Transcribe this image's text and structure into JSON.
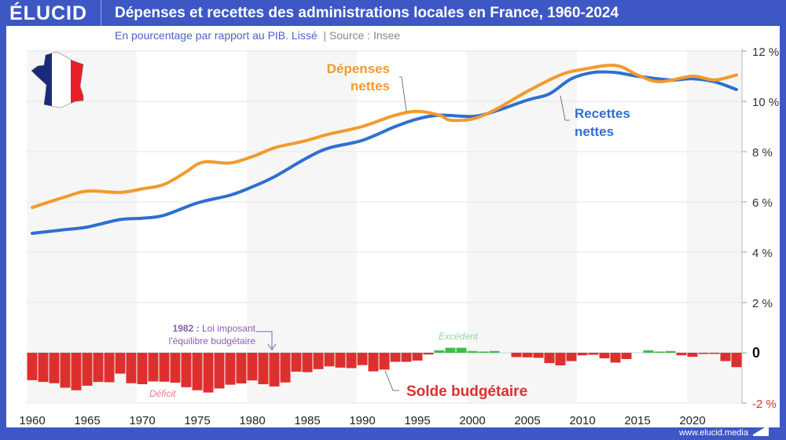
{
  "header": {
    "logo": "ÉLUCID",
    "title": "Dépenses et recettes des administrations locales en France, 1960-2024",
    "subtitle": "En pourcentage par rapport au PIB. Lissé",
    "source": "Source : Insee"
  },
  "footer": {
    "url": "www.elucid.media"
  },
  "colors": {
    "brand": "#3d57c4",
    "depenses": "#f39a2e",
    "recettes": "#2f6fd1",
    "deficit": "#de2f2f",
    "excedent": "#3bbf4a",
    "annotation": "#8a5fb0"
  },
  "annotations": {
    "depenses_line1": "Dépenses",
    "depenses_line2": "nettes",
    "recettes_line1": "Recettes",
    "recettes_line2": "nettes",
    "solde": "Solde budgétaire",
    "excedent": "Excédent",
    "deficit": "Déficit",
    "law_year": "1982 :",
    "law_text1": "Loi imposant",
    "law_text2": "l'équilibre budgétaire"
  },
  "chart_data": {
    "type": "line+bar",
    "xlim": [
      1960,
      2024
    ],
    "ylim": [
      -2,
      12
    ],
    "x_ticks": [
      "1960",
      "1965",
      "1970",
      "1975",
      "1980",
      "1985",
      "1990",
      "1995",
      "2000",
      "2005",
      "2010",
      "2015",
      "2020"
    ],
    "y_ticks": [
      "12 %",
      "10 %",
      "8 %",
      "6 %",
      "4 %",
      "2 %",
      "0",
      "-2 %"
    ],
    "grid": true,
    "series": [
      {
        "name": "Dépenses nettes",
        "type": "line",
        "x": [
          1960,
          1963,
          1965,
          1968,
          1970,
          1972,
          1974,
          1975,
          1976,
          1978,
          1980,
          1982,
          1984,
          1985,
          1987,
          1990,
          1993,
          1995,
          1997,
          1998,
          2000,
          2002,
          2005,
          2008,
          2010,
          2013,
          2015,
          2017,
          2020,
          2022,
          2024
        ],
        "y": [
          5.78,
          6.2,
          6.43,
          6.38,
          6.52,
          6.7,
          7.2,
          7.5,
          7.6,
          7.55,
          7.8,
          8.15,
          8.35,
          8.45,
          8.7,
          9.0,
          9.45,
          9.6,
          9.45,
          9.25,
          9.3,
          9.65,
          10.4,
          11.05,
          11.27,
          11.43,
          11.05,
          10.78,
          11.0,
          10.85,
          11.05
        ]
      },
      {
        "name": "Recettes nettes",
        "type": "line",
        "x": [
          1960,
          1963,
          1965,
          1968,
          1970,
          1972,
          1975,
          1978,
          1980,
          1982,
          1985,
          1987,
          1990,
          1993,
          1995,
          1997,
          2000,
          2002,
          2005,
          2007,
          2009,
          2011,
          2013,
          2015,
          2018,
          2020,
          2022,
          2024
        ],
        "y": [
          4.75,
          4.9,
          5.0,
          5.3,
          5.35,
          5.47,
          5.96,
          6.27,
          6.6,
          7.0,
          7.76,
          8.15,
          8.45,
          9.0,
          9.3,
          9.45,
          9.4,
          9.6,
          10.05,
          10.3,
          10.9,
          11.15,
          11.15,
          11.0,
          10.85,
          10.9,
          10.78,
          10.47
        ]
      },
      {
        "name": "Solde budgétaire",
        "type": "bar",
        "x": [
          1960,
          1961,
          1962,
          1963,
          1964,
          1965,
          1966,
          1967,
          1968,
          1969,
          1970,
          1971,
          1972,
          1973,
          1974,
          1975,
          1976,
          1977,
          1978,
          1979,
          1980,
          1981,
          1982,
          1983,
          1984,
          1985,
          1986,
          1987,
          1988,
          1989,
          1990,
          1991,
          1992,
          1993,
          1994,
          1995,
          1996,
          1997,
          1998,
          1999,
          2000,
          2001,
          2002,
          2003,
          2004,
          2005,
          2006,
          2007,
          2008,
          2009,
          2010,
          2011,
          2012,
          2013,
          2014,
          2015,
          2016,
          2017,
          2018,
          2019,
          2020,
          2021,
          2022,
          2023,
          2024
        ],
        "y": [
          -1.09,
          -1.16,
          -1.21,
          -1.39,
          -1.49,
          -1.31,
          -1.16,
          -1.17,
          -0.83,
          -1.21,
          -1.25,
          -1.14,
          -1.15,
          -1.19,
          -1.37,
          -1.49,
          -1.58,
          -1.42,
          -1.27,
          -1.22,
          -1.1,
          -1.25,
          -1.34,
          -1.18,
          -0.75,
          -0.77,
          -0.65,
          -0.54,
          -0.59,
          -0.61,
          -0.49,
          -0.74,
          -0.67,
          -0.36,
          -0.36,
          -0.31,
          -0.07,
          0.1,
          0.2,
          0.2,
          0.07,
          0.05,
          0.07,
          0.0,
          -0.17,
          -0.18,
          -0.2,
          -0.41,
          -0.5,
          -0.33,
          -0.1,
          -0.08,
          -0.22,
          -0.39,
          -0.25,
          0.0,
          0.1,
          0.05,
          0.07,
          -0.1,
          -0.16,
          -0.03,
          -0.03,
          -0.33,
          -0.57
        ]
      }
    ]
  }
}
